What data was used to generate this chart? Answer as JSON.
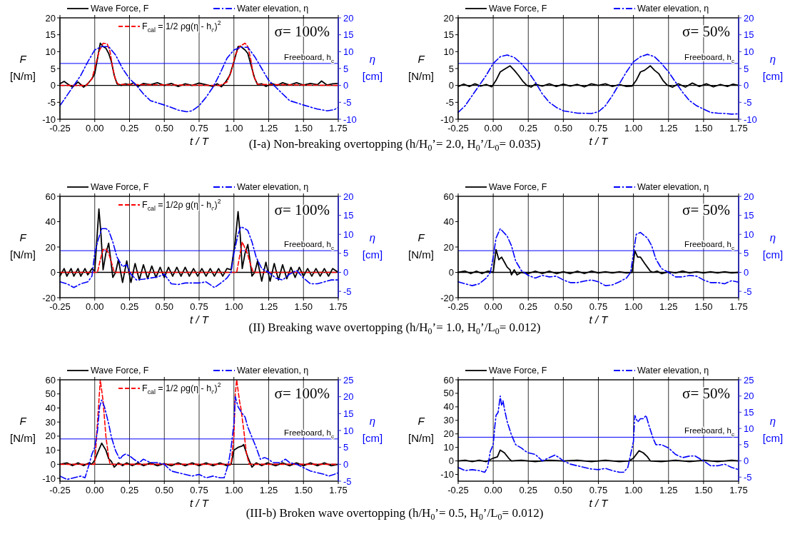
{
  "chart_data": [
    {
      "type": "line",
      "xlabel": "t / T",
      "ylabel": "F [N/m]",
      "y2label": "η [cm]",
      "annotations": [
        "σ= 100%",
        "(I-a) Non-breaking overtopping (h/H$_{0}$’= 2.0, H$_{0}$’/L$_{0}$= 0.035)"
      ],
      "xlim": [
        -0.25,
        1.75
      ],
      "xticks": [
        {
          "value": -0.25,
          "label": "-0.25"
        },
        {
          "value": 0,
          "label": "0.00"
        },
        {
          "value": 0.25,
          "label": "0.25"
        },
        {
          "value": 0.5,
          "label": "0.50"
        },
        {
          "value": 0.75,
          "label": "0.75"
        },
        {
          "value": 1,
          "label": "1.00"
        },
        {
          "value": 1.25,
          "label": "1.25"
        },
        {
          "value": 1.5,
          "label": "1.50"
        },
        {
          "value": 1.75,
          "label": "1.75"
        }
      ],
      "ylim": [
        -10,
        20
      ],
      "yticks": [
        -10,
        -5,
        0,
        5,
        10,
        15,
        20
      ],
      "y2lim": [
        -10,
        20
      ],
      "y2ticks": [
        -10,
        -5,
        0,
        5,
        10,
        15,
        20
      ],
      "grid": "x",
      "legend": "top",
      "ref_lines": [
        {
          "axis": "y",
          "value": 0,
          "color": "#000000"
        },
        {
          "axis": "y2",
          "value": 6.5,
          "label": "Freeboard, h$_{c}$",
          "color": "#0000ff"
        }
      ],
      "series": [
        {
          "name": "Wave Force, F",
          "color": "#000000",
          "line_style": "solid",
          "x": [
            -0.25,
            -0.22,
            -0.19,
            -0.16,
            -0.12,
            -0.08,
            -0.05,
            -0.02,
            0,
            0.02,
            0.04,
            0.06,
            0.08,
            0.1,
            0.12,
            0.14,
            0.16,
            0.19,
            0.22,
            0.25,
            0.28,
            0.31,
            0.35,
            0.4,
            0.45,
            0.5,
            0.55,
            0.6,
            0.65,
            0.7,
            0.75,
            0.8,
            0.85,
            0.88,
            0.91,
            0.94,
            0.97,
            1,
            1.03,
            1.05,
            1.08,
            1.1,
            1.12,
            1.15,
            1.17,
            1.2,
            1.23,
            1.27,
            1.31,
            1.35,
            1.4,
            1.45,
            1.5,
            1.55,
            1.6,
            1.63,
            1.67,
            1.71,
            1.75
          ],
          "values": [
            0.5,
            1.2,
            0.3,
            -0.5,
            1,
            -0.5,
            0.5,
            2,
            3.5,
            8,
            12.5,
            11.5,
            11,
            9.5,
            7,
            3,
            0.5,
            0,
            0.5,
            0.2,
            0.8,
            -0.3,
            0.6,
            0.2,
            0.8,
            0,
            0.6,
            -0.3,
            0.5,
            0,
            0.7,
            0.2,
            -0.3,
            0.5,
            -0.4,
            1,
            3,
            7,
            11.5,
            11.5,
            10.5,
            9.5,
            6.5,
            2,
            0.3,
            0.5,
            -0.3,
            0.6,
            0,
            0.8,
            0.1,
            0.8,
            0.1,
            0.6,
            0.2,
            1.3,
            0.1,
            0.5,
            0.6
          ]
        },
        {
          "name": "F$_{cal}$ = 1/2 ρg(η - h$_{c}$)$^{2}$",
          "color": "#ff0000",
          "line_style": "dashed",
          "x": [
            -0.25,
            -0.06,
            -0.02,
            0,
            0.03,
            0.06,
            0.09,
            0.11,
            0.13,
            0.15,
            0.17,
            0.9,
            0.95,
            0.98,
            1.01,
            1.04,
            1.08,
            1.1,
            1.12,
            1.14,
            1.17,
            1.75
          ],
          "values": [
            0,
            0,
            2,
            5,
            10,
            12.5,
            12.3,
            10,
            5,
            1.5,
            0.3,
            0,
            1,
            4,
            9,
            11.5,
            12.5,
            11.5,
            8,
            3,
            0.3,
            0
          ]
        },
        {
          "name": "Water elevation, η",
          "color": "#0000ff",
          "line_style": "dashdot",
          "axis": "y2",
          "x": [
            -0.25,
            -0.2,
            -0.15,
            -0.1,
            -0.05,
            0,
            0.05,
            0.1,
            0.15,
            0.2,
            0.25,
            0.3,
            0.35,
            0.4,
            0.5,
            0.55,
            0.6,
            0.66,
            0.7,
            0.75,
            0.8,
            0.85,
            0.9,
            0.95,
            1,
            1.05,
            1.1,
            1.15,
            1.2,
            1.25,
            1.3,
            1.35,
            1.4,
            1.5,
            1.6,
            1.67,
            1.72,
            1.75
          ],
          "values": [
            -6,
            -3,
            0,
            3,
            7,
            10.5,
            11.5,
            11.5,
            9,
            5,
            2,
            0,
            -2.5,
            -4.5,
            -5.8,
            -6.5,
            -7.3,
            -7.8,
            -7.5,
            -6,
            -3.5,
            -0.5,
            3.5,
            8,
            10.5,
            11.3,
            11.3,
            8.5,
            5,
            1.5,
            -0.5,
            -2.5,
            -4.5,
            -5.8,
            -7,
            -7.5,
            -7.2,
            -6.5
          ]
        }
      ]
    },
    {
      "type": "line",
      "xlabel": "t / T",
      "ylabel": "F [N/m]",
      "y2label": "η [cm]",
      "annotations": [
        "σ= 50%"
      ],
      "xlim": [
        -0.25,
        1.75
      ],
      "xticks": [
        {
          "value": -0.25,
          "label": "-0.25"
        },
        {
          "value": 0,
          "label": "0.00"
        },
        {
          "value": 0.25,
          "label": "0.25"
        },
        {
          "value": 0.5,
          "label": "0.50"
        },
        {
          "value": 0.75,
          "label": "0.75"
        },
        {
          "value": 1,
          "label": "1.00"
        },
        {
          "value": 1.25,
          "label": "1.25"
        },
        {
          "value": 1.5,
          "label": "1.50"
        },
        {
          "value": 1.75,
          "label": "1.75"
        }
      ],
      "ylim": [
        -10,
        20
      ],
      "yticks": [
        -10,
        -5,
        0,
        5,
        10,
        15,
        20
      ],
      "y2lim": [
        -10,
        20
      ],
      "y2ticks": [
        -10,
        -5,
        0,
        5,
        10,
        15,
        20
      ],
      "grid": "x",
      "legend": "top",
      "ref_lines": [
        {
          "axis": "y",
          "value": 0,
          "color": "#000000"
        },
        {
          "axis": "y2",
          "value": 6.5,
          "label": "Freeboard, h$_{c}$",
          "color": "#0000ff"
        }
      ],
      "series": [
        {
          "name": "Wave Force, F",
          "color": "#000000",
          "line_style": "solid",
          "x": [
            -0.25,
            -0.21,
            -0.17,
            -0.13,
            -0.09,
            -0.05,
            -0.01,
            0.02,
            0.05,
            0.08,
            0.12,
            0.15,
            0.18,
            0.21,
            0.24,
            0.27,
            0.3,
            0.35,
            0.4,
            0.45,
            0.5,
            0.55,
            0.6,
            0.65,
            0.7,
            0.75,
            0.8,
            0.85,
            0.9,
            0.95,
            0.99,
            1.02,
            1.05,
            1.08,
            1.12,
            1.15,
            1.18,
            1.21,
            1.24,
            1.28,
            1.32,
            1.37,
            1.42,
            1.47,
            1.52,
            1.57,
            1.62,
            1.67,
            1.71,
            1.75
          ],
          "values": [
            -0.3,
            0.4,
            -0.3,
            0.5,
            -0.2,
            0.3,
            -0.4,
            1.5,
            4,
            4.8,
            5.8,
            4.5,
            3,
            1.3,
            0,
            -0.5,
            0.4,
            -0.2,
            0.5,
            -0.3,
            0.4,
            -0.2,
            0.3,
            -0.4,
            0.5,
            0,
            0.5,
            -0.3,
            0.3,
            -0.3,
            -0.2,
            1.5,
            4,
            4.5,
            5.8,
            4.5,
            3.5,
            1.5,
            0.1,
            -0.5,
            0.5,
            -0.5,
            0.7,
            -0.3,
            0.5,
            -0.4,
            0.3,
            -0.3,
            0.4,
            0
          ]
        },
        {
          "name": "Water elevation, η",
          "color": "#0000ff",
          "line_style": "dashdot",
          "axis": "y2",
          "x": [
            -0.25,
            -0.2,
            -0.15,
            -0.1,
            -0.05,
            0,
            0.05,
            0.1,
            0.15,
            0.2,
            0.25,
            0.3,
            0.35,
            0.4,
            0.45,
            0.5,
            0.6,
            0.7,
            0.75,
            0.8,
            0.85,
            0.9,
            0.95,
            1,
            1.05,
            1.1,
            1.15,
            1.2,
            1.25,
            1.3,
            1.35,
            1.4,
            1.45,
            1.5,
            1.55,
            1.6,
            1.65,
            1.7,
            1.75
          ],
          "values": [
            -8,
            -6,
            -3,
            0,
            3,
            6.5,
            8.5,
            9,
            8.3,
            6.5,
            4,
            1,
            -2.5,
            -5,
            -6.5,
            -7.5,
            -8.2,
            -8.3,
            -7.8,
            -6,
            -3,
            0.5,
            4,
            7,
            8.5,
            9.2,
            8.5,
            6.5,
            4,
            1,
            -2,
            -4.5,
            -6,
            -7,
            -8,
            -8.2,
            -8.3,
            -8.5,
            -8.4
          ]
        }
      ]
    },
    {
      "type": "line",
      "xlabel": "t / T",
      "ylabel": "F [N/m]",
      "y2label": "η [cm]",
      "annotations": [
        "σ= 100%",
        "(II) Breaking wave overtopping (h/H$_{0}$’= 1.0, H$_{0}$’/L$_{0}$= 0.012)"
      ],
      "xlim": [
        -0.25,
        1.75
      ],
      "xticks": [
        {
          "value": -0.25,
          "label": "-0.25"
        },
        {
          "value": 0,
          "label": "0.00"
        },
        {
          "value": 0.25,
          "label": "0.25"
        },
        {
          "value": 0.5,
          "label": "0.50"
        },
        {
          "value": 0.75,
          "label": "0.75"
        },
        {
          "value": 1,
          "label": "1.00"
        },
        {
          "value": 1.25,
          "label": "1.25"
        },
        {
          "value": 1.5,
          "label": "1.50"
        },
        {
          "value": 1.75,
          "label": "1.75"
        }
      ],
      "ylim": [
        -20,
        60
      ],
      "yticks": [
        -20,
        0,
        20,
        40,
        60
      ],
      "y2lim": [
        -6.67,
        20
      ],
      "y2ticks": [
        -5,
        0,
        5,
        10,
        15,
        20
      ],
      "grid": "x",
      "legend": "top",
      "ref_lines": [
        {
          "axis": "y",
          "value": 0,
          "color": "#000000"
        },
        {
          "axis": "y2",
          "value": 5.7,
          "label": "Freeboard, h$_{c}$",
          "color": "#0000ff"
        }
      ],
      "series": [
        {
          "name": "Wave Force, F",
          "color": "#000000",
          "line_style": "solid",
          "x": [
            -0.25,
            -0.22,
            -0.2,
            -0.17,
            -0.15,
            -0.12,
            -0.1,
            -0.07,
            -0.05,
            -0.02,
            0,
            0.015,
            0.03,
            0.045,
            0.06,
            0.08,
            0.1,
            0.115,
            0.13,
            0.15,
            0.17,
            0.2,
            0.23,
            0.26,
            0.29,
            0.32,
            0.35,
            0.38,
            0.41,
            0.44,
            0.47,
            0.5,
            0.53,
            0.56,
            0.59,
            0.62,
            0.65,
            0.68,
            0.71,
            0.74,
            0.77,
            0.8,
            0.83,
            0.86,
            0.89,
            0.92,
            0.95,
            0.98,
            1.01,
            1.03,
            1.045,
            1.06,
            1.08,
            1.1,
            1.115,
            1.13,
            1.15,
            1.17,
            1.2,
            1.23,
            1.26,
            1.29,
            1.32,
            1.35,
            1.38,
            1.41,
            1.44,
            1.47,
            1.5,
            1.53,
            1.56,
            1.59,
            1.62,
            1.65,
            1.68,
            1.71,
            1.75
          ],
          "values": [
            -3,
            3,
            -3,
            3,
            -3,
            3,
            -3,
            3,
            -2,
            3,
            1,
            25,
            50,
            30,
            2,
            15,
            23,
            10,
            -4,
            0,
            10,
            -8,
            9,
            -8,
            7,
            -6,
            6,
            -5,
            5,
            -4,
            4,
            -4,
            4,
            -3,
            4,
            -3,
            4,
            -3,
            3,
            -3,
            3,
            -3,
            3,
            -3,
            3,
            -3,
            3,
            2,
            25,
            48,
            30,
            3,
            15,
            22,
            10,
            -3,
            0,
            9,
            -7,
            8,
            -7,
            7,
            -6,
            6,
            -5,
            4,
            -4,
            4,
            -3,
            3,
            -3,
            3,
            -3,
            3,
            -3,
            3,
            0
          ]
        },
        {
          "name": "F$_{cal}$ = 1/2ρ g(η - h$_{c}$)$^{2}$",
          "color": "#ff0000",
          "line_style": "dashed",
          "x": [
            -0.25,
            0.02,
            0.04,
            0.06,
            0.08,
            0.1,
            0.12,
            0.14,
            1.02,
            1.04,
            1.06,
            1.08,
            1.1,
            1.12,
            1.14,
            1.75
          ],
          "values": [
            0,
            0,
            10,
            18,
            18.5,
            15,
            8,
            0,
            0,
            12,
            24,
            19,
            14,
            6,
            0,
            0
          ]
        },
        {
          "name": "Water elevation, η",
          "color": "#0000ff",
          "line_style": "dashdot",
          "axis": "y2",
          "x": [
            -0.25,
            -0.2,
            -0.15,
            -0.1,
            -0.05,
            -0.02,
            0,
            0.02,
            0.05,
            0.08,
            0.1,
            0.13,
            0.16,
            0.2,
            0.23,
            0.26,
            0.3,
            0.35,
            0.4,
            0.45,
            0.5,
            0.55,
            0.6,
            0.65,
            0.7,
            0.75,
            0.8,
            0.86,
            0.9,
            0.95,
            0.98,
            1,
            1.03,
            1.05,
            1.08,
            1.1,
            1.13,
            1.16,
            1.2,
            1.25,
            1.3,
            1.35,
            1.4,
            1.45,
            1.5,
            1.55,
            1.6,
            1.65,
            1.7,
            1.75
          ],
          "values": [
            -2.5,
            -3,
            -4,
            -3,
            -2.5,
            -1,
            5,
            8,
            11.5,
            11.5,
            11,
            8,
            4,
            1.5,
            2,
            -0.5,
            -2,
            -1.8,
            -1.5,
            -1.2,
            -0.5,
            -3,
            -3.2,
            -2.8,
            -2.8,
            -2.8,
            -2.5,
            -4,
            -3,
            -1.5,
            0,
            5,
            10,
            12,
            11.5,
            11,
            8,
            4,
            1,
            0,
            -1.5,
            -2,
            -0.5,
            0.5,
            -1.5,
            -3,
            -3,
            -2.5,
            -2,
            -2
          ]
        }
      ]
    },
    {
      "type": "line",
      "xlabel": "t / T",
      "ylabel": "F [N/m]",
      "y2label": "η [cm]",
      "annotations": [
        "σ= 50%"
      ],
      "xlim": [
        -0.25,
        1.75
      ],
      "xticks": [
        {
          "value": -0.25,
          "label": "-0.25"
        },
        {
          "value": 0,
          "label": "0.00"
        },
        {
          "value": 0.25,
          "label": "0.25"
        },
        {
          "value": 0.5,
          "label": "0.50"
        },
        {
          "value": 0.75,
          "label": "0.75"
        },
        {
          "value": 1,
          "label": "1.00"
        },
        {
          "value": 1.25,
          "label": "1.25"
        },
        {
          "value": 1.5,
          "label": "1.50"
        },
        {
          "value": 1.75,
          "label": "1.75"
        }
      ],
      "ylim": [
        -20,
        60
      ],
      "yticks": [
        -20,
        0,
        20,
        40,
        60
      ],
      "y2lim": [
        -6.67,
        20
      ],
      "y2ticks": [
        -5,
        0,
        5,
        10,
        15,
        20
      ],
      "grid": "x",
      "legend": "top",
      "ref_lines": [
        {
          "axis": "y",
          "value": 0,
          "color": "#000000"
        },
        {
          "axis": "y2",
          "value": 5.7,
          "label": "Freeboard, h$_{c}$",
          "color": "#0000ff"
        }
      ],
      "series": [
        {
          "name": "Wave Force, F",
          "color": "#000000",
          "line_style": "solid",
          "x": [
            -0.25,
            -0.2,
            -0.16,
            -0.12,
            -0.08,
            -0.04,
            0,
            0.02,
            0.04,
            0.06,
            0.08,
            0.1,
            0.12,
            0.13,
            0.15,
            0.17,
            0.2,
            0.25,
            0.3,
            0.35,
            0.4,
            0.45,
            0.5,
            0.55,
            0.6,
            0.65,
            0.7,
            0.75,
            0.8,
            0.85,
            0.9,
            0.95,
            0.99,
            1.01,
            1.03,
            1.05,
            1.08,
            1.1,
            1.12,
            1.14,
            1.17,
            1.2,
            1.25,
            1.3,
            1.35,
            1.4,
            1.45,
            1.5,
            1.55,
            1.6,
            1.65,
            1.7,
            1.75
          ],
          "values": [
            0,
            1,
            -1,
            1,
            -1,
            1,
            0,
            18,
            10,
            12,
            8,
            4,
            2,
            -2,
            2,
            -2,
            0,
            -1,
            1,
            -1,
            1,
            -1,
            0.5,
            -1,
            1,
            -1,
            1,
            -0.5,
            0.5,
            -0.5,
            0.5,
            -0.5,
            0,
            17,
            12,
            12,
            7,
            4,
            1,
            0,
            1,
            -1,
            0.5,
            -0.5,
            1,
            -0.5,
            0.5,
            -0.5,
            0.5,
            -0.5,
            0.5,
            -0.5,
            0
          ]
        },
        {
          "name": "Water elevation, η",
          "color": "#0000ff",
          "line_style": "dashdot",
          "axis": "y2",
          "x": [
            -0.25,
            -0.15,
            -0.1,
            -0.05,
            -0.02,
            0,
            0.02,
            0.05,
            0.1,
            0.13,
            0.16,
            0.2,
            0.25,
            0.3,
            0.35,
            0.4,
            0.45,
            0.5,
            0.55,
            0.6,
            0.65,
            0.7,
            0.75,
            0.8,
            0.85,
            0.9,
            0.95,
            0.98,
            1,
            1.02,
            1.05,
            1.1,
            1.13,
            1.16,
            1.2,
            1.25,
            1.3,
            1.35,
            1.4,
            1.45,
            1.5,
            1.55,
            1.6,
            1.65,
            1.7,
            1.75
          ],
          "values": [
            -2.5,
            -3.5,
            -3,
            -1.5,
            0,
            4,
            9,
            11.5,
            9.5,
            7,
            3,
            0.5,
            -0.8,
            -1.5,
            -0.8,
            -1.2,
            -1,
            -2,
            -2.7,
            -2.7,
            -2.3,
            -2,
            -2.5,
            -3.5,
            -3.3,
            -2.5,
            -1.5,
            0,
            5,
            10,
            10.5,
            9,
            7,
            3.5,
            1,
            0,
            -1.2,
            -1.2,
            -0.8,
            -1,
            -2,
            -2.7,
            -2.7,
            -3,
            -2.2,
            -2.6
          ]
        }
      ]
    },
    {
      "type": "line",
      "xlabel": "t / T",
      "ylabel": "F [N/m]",
      "y2label": "η [cm]",
      "annotations": [
        "σ= 100%",
        "(III-b) Broken wave overtopping (h/H$_{0}$’= 0.5, H$_{0}$’/L$_{0}$= 0.012)"
      ],
      "xlim": [
        -0.25,
        1.75
      ],
      "xticks": [
        {
          "value": -0.25,
          "label": "-0.25"
        },
        {
          "value": 0,
          "label": "0.00"
        },
        {
          "value": 0.25,
          "label": "0.25"
        },
        {
          "value": 0.5,
          "label": "0.50"
        },
        {
          "value": 0.75,
          "label": "0.75"
        },
        {
          "value": 1,
          "label": "1.00"
        },
        {
          "value": 1.25,
          "label": "1.25"
        },
        {
          "value": 1.5,
          "label": "1.50"
        },
        {
          "value": 1.75,
          "label": "1.75"
        }
      ],
      "ylim": [
        -12,
        60
      ],
      "yticks": [
        -10,
        0,
        10,
        20,
        30,
        40,
        50,
        60
      ],
      "y2lim": [
        -5,
        25
      ],
      "y2ticks": [
        -5,
        0,
        5,
        10,
        15,
        20,
        25
      ],
      "grid": "x",
      "legend": "top",
      "ref_lines": [
        {
          "axis": "y",
          "value": 0,
          "color": "#000000"
        },
        {
          "axis": "y2",
          "value": 7.5,
          "label": "Freeboard, h$_{c}$",
          "color": "#0000ff"
        }
      ],
      "series": [
        {
          "name": "Wave Force, F",
          "color": "#000000",
          "line_style": "solid",
          "x": [
            -0.25,
            -0.2,
            -0.16,
            -0.12,
            -0.08,
            -0.04,
            -0.02,
            0,
            0.02,
            0.05,
            0.08,
            0.1,
            0.12,
            0.14,
            0.17,
            0.2,
            0.23,
            0.27,
            0.31,
            0.35,
            0.4,
            0.45,
            0.5,
            0.55,
            0.6,
            0.65,
            0.7,
            0.75,
            0.8,
            0.85,
            0.9,
            0.95,
            0.98,
            1,
            1.03,
            1.06,
            1.07,
            1.1,
            1.13,
            1.16,
            1.2,
            1.24,
            1.3,
            1.35,
            1.4,
            1.45,
            1.5,
            1.55,
            1.6,
            1.65,
            1.7,
            1.75
          ],
          "values": [
            0,
            1,
            -1,
            1,
            -1,
            1,
            0,
            3,
            8,
            15,
            10,
            4,
            2,
            -2,
            1,
            -1,
            1,
            -1,
            1,
            -1,
            1,
            -1,
            0.5,
            -1,
            1,
            -1,
            1,
            -1,
            1,
            -1,
            1,
            -1,
            0,
            10,
            12,
            13,
            14,
            5,
            -2,
            1,
            -1,
            1,
            -1,
            1,
            -1,
            1,
            -1,
            1,
            -1,
            1,
            -1,
            0
          ]
        },
        {
          "name": "F$_{cal}$ = 1/2 ρg(η - h$_{c}$)$^{2}$",
          "color": "#ff0000",
          "line_style": "dashed",
          "x": [
            -0.25,
            0,
            0.02,
            0.04,
            0.06,
            0.08,
            0.1,
            0.11,
            0.98,
            1,
            1.01,
            1.02,
            1.04,
            1.05,
            1.07,
            1.09,
            1.11,
            1.75
          ],
          "values": [
            0,
            0,
            30,
            60,
            45,
            20,
            5,
            0,
            0,
            20,
            50,
            60,
            45,
            40,
            25,
            8,
            0,
            0
          ]
        },
        {
          "name": "Water elevation, η",
          "color": "#0000ff",
          "line_style": "dashdot",
          "axis": "y2",
          "x": [
            -0.25,
            -0.2,
            -0.15,
            -0.1,
            -0.07,
            -0.04,
            -0.02,
            0,
            0.02,
            0.035,
            0.05,
            0.07,
            0.1,
            0.12,
            0.15,
            0.18,
            0.2,
            0.22,
            0.25,
            0.28,
            0.32,
            0.35,
            0.4,
            0.45,
            0.5,
            0.55,
            0.6,
            0.65,
            0.7,
            0.75,
            0.8,
            0.85,
            0.9,
            0.93,
            0.96,
            0.98,
            1,
            1.01,
            1.03,
            1.06,
            1.08,
            1.1,
            1.13,
            1.16,
            1.19,
            1.22,
            1.25,
            1.28,
            1.33,
            1.37,
            1.4,
            1.45,
            1.5,
            1.55,
            1.6,
            1.65,
            1.68,
            1.72,
            1.75
          ],
          "values": [
            -3.5,
            -4.5,
            -4,
            -3.5,
            -4,
            0,
            3,
            5,
            10,
            17,
            19,
            17,
            12,
            8,
            4,
            1.5,
            2.5,
            3,
            2.5,
            1.5,
            0.5,
            1.5,
            0.5,
            0.5,
            0,
            -2,
            -2.5,
            -3,
            -3.5,
            -3,
            -4,
            -3.5,
            -4,
            -4,
            0,
            5,
            12,
            20,
            17,
            15,
            14,
            11,
            8,
            5,
            1.5,
            2,
            1.5,
            0.5,
            0.5,
            1.5,
            0.5,
            0,
            -1,
            -2,
            -2.5,
            -3,
            -3.5,
            -3,
            -2.5
          ]
        }
      ]
    },
    {
      "type": "line",
      "xlabel": "t / T",
      "ylabel": "F [N/m]",
      "y2label": "η [cm]",
      "annotations": [
        "σ= 50%"
      ],
      "xlim": [
        -0.25,
        1.75
      ],
      "xticks": [
        {
          "value": -0.25,
          "label": "-0.25"
        },
        {
          "value": 0,
          "label": "0.00"
        },
        {
          "value": 0.25,
          "label": "0.25"
        },
        {
          "value": 0.5,
          "label": "0.50"
        },
        {
          "value": 0.75,
          "label": "0.75"
        },
        {
          "value": 1,
          "label": "1.00"
        },
        {
          "value": 1.25,
          "label": "1.25"
        },
        {
          "value": 1.5,
          "label": "1.50"
        },
        {
          "value": 1.75,
          "label": "1.75"
        }
      ],
      "ylim": [
        -15,
        60
      ],
      "yticks": [
        -10,
        0,
        10,
        20,
        30,
        40,
        50,
        60
      ],
      "y2lim": [
        -6.25,
        25
      ],
      "y2ticks": [
        -5,
        0,
        5,
        10,
        15,
        20,
        25
      ],
      "grid": "x",
      "legend": "top",
      "ref_lines": [
        {
          "axis": "y",
          "value": 0,
          "color": "#000000"
        },
        {
          "axis": "y2",
          "value": 7.3,
          "label": "Freeboard, h$_{c}$",
          "color": "#0000ff"
        }
      ],
      "series": [
        {
          "name": "Wave Force, F",
          "color": "#000000",
          "line_style": "solid",
          "x": [
            -0.25,
            -0.2,
            -0.15,
            -0.1,
            -0.05,
            0,
            0.03,
            0.05,
            0.08,
            0.11,
            0.13,
            0.2,
            0.3,
            0.4,
            0.5,
            0.6,
            0.7,
            0.8,
            0.9,
            0.97,
            1,
            1.04,
            1.07,
            1.1,
            1.12,
            1.2,
            1.3,
            1.4,
            1.5,
            1.6,
            1.7,
            1.75
          ],
          "values": [
            0,
            0.5,
            -0.5,
            0.5,
            -0.5,
            2,
            3,
            8,
            6,
            2,
            0,
            0.5,
            -0.5,
            0.5,
            0,
            0.5,
            -0.5,
            0.5,
            -0.5,
            0,
            2,
            7.5,
            6,
            3,
            0,
            -0.5,
            0.5,
            -0.5,
            0.5,
            -0.5,
            0.5,
            0
          ]
        },
        {
          "name": "Water elevation, η",
          "color": "#0000ff",
          "line_style": "dashdot",
          "axis": "y2",
          "x": [
            -0.25,
            -0.2,
            -0.15,
            -0.1,
            -0.06,
            -0.04,
            -0.02,
            0,
            0.01,
            0.02,
            0.035,
            0.05,
            0.06,
            0.07,
            0.08,
            0.1,
            0.13,
            0.16,
            0.2,
            0.23,
            0.25,
            0.3,
            0.35,
            0.4,
            0.44,
            0.47,
            0.5,
            0.55,
            0.6,
            0.65,
            0.7,
            0.75,
            0.8,
            0.85,
            0.9,
            0.93,
            0.96,
            0.98,
            1,
            1.01,
            1.03,
            1.05,
            1.07,
            1.09,
            1.11,
            1.14,
            1.16,
            1.2,
            1.25,
            1.3,
            1.35,
            1.4,
            1.44,
            1.48,
            1.5,
            1.55,
            1.6,
            1.65,
            1.7,
            1.75
          ],
          "values": [
            -2,
            -3,
            -2.7,
            -3,
            -3.5,
            -2,
            3,
            5,
            10,
            14,
            15,
            20,
            17,
            18.5,
            16,
            12,
            8,
            5,
            4,
            3,
            2.5,
            2,
            0,
            1,
            1.8,
            1,
            0,
            -1,
            -1.5,
            -2,
            -2.5,
            -2.7,
            -2.3,
            -3,
            -3.5,
            -3.5,
            -2,
            2,
            6,
            14,
            12,
            13,
            13,
            14,
            11,
            7,
            5,
            5,
            4,
            2,
            1,
            1.5,
            1.5,
            0.5,
            0,
            -1.5,
            -1.5,
            -1,
            -2,
            -2.7
          ]
        }
      ]
    }
  ]
}
